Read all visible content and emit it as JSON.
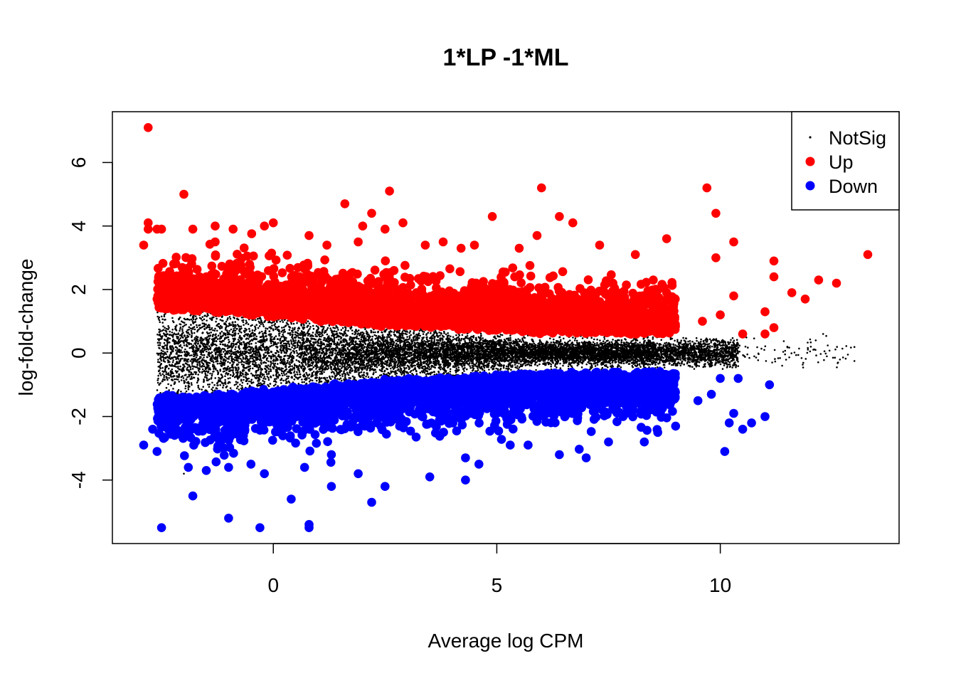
{
  "chart_data": {
    "type": "scatter",
    "title": "1*LP -1*ML",
    "xlabel": "Average log CPM",
    "ylabel": "log-fold-change",
    "xlim": [
      -3.6,
      14.0
    ],
    "ylim": [
      -6.0,
      7.6
    ],
    "xticks": [
      0,
      5,
      10
    ],
    "yticks": [
      -4,
      -2,
      0,
      2,
      4,
      6
    ],
    "grid": false,
    "legend_position": "top-right",
    "colors": {
      "NotSig": "#000000",
      "Up": "#ff0000",
      "Down": "#0000ff"
    },
    "series": [
      {
        "name": "NotSig",
        "marker": "small-dot",
        "summary": "dense cloud centered on 0; spread about ±1.5 at low logCPM narrowing to about ±0.2 near logCPM 8–13",
        "points": [
          [
            -2.4,
            1.5
          ],
          [
            -2.3,
            -1.6
          ],
          [
            -2.0,
            -3.8
          ],
          [
            -1.5,
            0.8
          ],
          [
            -0.5,
            -0.9
          ],
          [
            0.5,
            0.4
          ],
          [
            3.0,
            0.1
          ],
          [
            6.0,
            -0.1
          ],
          [
            9.5,
            0.2
          ],
          [
            11.5,
            0.2
          ],
          [
            12.3,
            0.6
          ],
          [
            13.0,
            -0.25
          ]
        ]
      },
      {
        "name": "Up",
        "marker": "filled-circle",
        "points": [
          [
            -2.8,
            7.1
          ],
          [
            -2.8,
            4.1
          ],
          [
            -2.8,
            3.9
          ],
          [
            -2.9,
            3.4
          ],
          [
            -2.6,
            3.9
          ],
          [
            -2.5,
            3.9
          ],
          [
            -2.6,
            1.7
          ],
          [
            -2.0,
            5.0
          ],
          [
            -1.8,
            3.9
          ],
          [
            -1.3,
            3.5
          ],
          [
            -1.3,
            4.0
          ],
          [
            -0.9,
            3.9
          ],
          [
            -0.2,
            4.0
          ],
          [
            0.0,
            4.1
          ],
          [
            0.8,
            3.7
          ],
          [
            1.2,
            3.4
          ],
          [
            1.6,
            4.7
          ],
          [
            1.9,
            3.5
          ],
          [
            2.0,
            4.0
          ],
          [
            2.2,
            4.4
          ],
          [
            2.6,
            5.1
          ],
          [
            2.5,
            3.9
          ],
          [
            2.9,
            4.1
          ],
          [
            3.4,
            3.4
          ],
          [
            3.8,
            3.5
          ],
          [
            4.2,
            3.3
          ],
          [
            4.5,
            3.4
          ],
          [
            4.9,
            4.3
          ],
          [
            5.5,
            3.3
          ],
          [
            5.9,
            3.7
          ],
          [
            6.0,
            5.2
          ],
          [
            6.4,
            4.3
          ],
          [
            6.7,
            4.1
          ],
          [
            7.3,
            3.4
          ],
          [
            8.1,
            3.1
          ],
          [
            8.8,
            3.6
          ],
          [
            9.7,
            5.2
          ],
          [
            9.9,
            4.4
          ],
          [
            9.9,
            3.0
          ],
          [
            10.3,
            3.5
          ],
          [
            11.2,
            2.9
          ],
          [
            11.2,
            2.4
          ],
          [
            11.6,
            1.9
          ],
          [
            11.9,
            1.7
          ],
          [
            12.2,
            2.3
          ],
          [
            12.6,
            2.2
          ],
          [
            13.3,
            3.1
          ],
          [
            11.0,
            1.3
          ],
          [
            11.2,
            0.8
          ],
          [
            11.0,
            0.6
          ],
          [
            10.5,
            0.6
          ],
          [
            10.3,
            1.8
          ],
          [
            9.6,
            1.0
          ],
          [
            10.0,
            1.2
          ],
          [
            8.5,
            2.3
          ],
          [
            8.8,
            1.9
          ],
          [
            -1.5,
            2.4
          ],
          [
            -0.8,
            2.2
          ],
          [
            0.6,
            2.0
          ],
          [
            1.5,
            1.8
          ],
          [
            2.7,
            2.6
          ],
          [
            3.5,
            1.3
          ],
          [
            4.5,
            1.6
          ],
          [
            5.4,
            2.4
          ],
          [
            6.2,
            1.2
          ],
          [
            7.0,
            1.1
          ],
          [
            7.8,
            0.9
          ],
          [
            8.2,
            0.7
          ]
        ]
      },
      {
        "name": "Down",
        "marker": "filled-circle",
        "points": [
          [
            -2.5,
            -5.5
          ],
          [
            -2.7,
            -2.4
          ],
          [
            -2.9,
            -2.9
          ],
          [
            -2.6,
            -3.1
          ],
          [
            -2.2,
            -1.8
          ],
          [
            -1.9,
            -3.6
          ],
          [
            -1.8,
            -4.5
          ],
          [
            -1.5,
            -3.7
          ],
          [
            -1.0,
            -3.6
          ],
          [
            -1.0,
            -5.2
          ],
          [
            -0.5,
            -3.5
          ],
          [
            -0.3,
            -5.5
          ],
          [
            -0.2,
            -3.8
          ],
          [
            0.4,
            -4.6
          ],
          [
            0.7,
            -3.6
          ],
          [
            0.8,
            -5.5
          ],
          [
            0.8,
            -5.4
          ],
          [
            1.3,
            -3.2
          ],
          [
            1.3,
            -4.2
          ],
          [
            1.9,
            -3.8
          ],
          [
            2.2,
            -4.7
          ],
          [
            2.5,
            -4.2
          ],
          [
            3.5,
            -3.9
          ],
          [
            4.3,
            -3.3
          ],
          [
            4.3,
            -4.0
          ],
          [
            4.6,
            -3.5
          ],
          [
            5.3,
            -2.9
          ],
          [
            5.7,
            -2.9
          ],
          [
            6.4,
            -3.2
          ],
          [
            7.0,
            -3.3
          ],
          [
            7.5,
            -2.8
          ],
          [
            8.3,
            -2.8
          ],
          [
            8.6,
            -2.5
          ],
          [
            9.0,
            -2.3
          ],
          [
            9.5,
            -1.5
          ],
          [
            9.8,
            -1.3
          ],
          [
            10.0,
            -0.8
          ],
          [
            10.4,
            -0.8
          ],
          [
            10.1,
            -3.1
          ],
          [
            10.2,
            -2.2
          ],
          [
            10.5,
            -2.4
          ],
          [
            10.7,
            -2.2
          ],
          [
            10.3,
            -1.9
          ],
          [
            11.0,
            -2.0
          ],
          [
            11.1,
            -1.0
          ],
          [
            -1.3,
            -1.4
          ],
          [
            -0.6,
            -2.0
          ],
          [
            0.4,
            -1.6
          ],
          [
            1.6,
            -1.3
          ],
          [
            2.6,
            -1.0
          ],
          [
            3.8,
            -1.1
          ],
          [
            5.1,
            -0.7
          ],
          [
            6.6,
            -0.8
          ],
          [
            7.6,
            -0.6
          ],
          [
            8.4,
            -0.6
          ]
        ]
      }
    ]
  },
  "legend": {
    "items": [
      {
        "label": "NotSig",
        "marker": "small-dot"
      },
      {
        "label": "Up",
        "marker": "filled-circle"
      },
      {
        "label": "Down",
        "marker": "filled-circle"
      }
    ]
  }
}
